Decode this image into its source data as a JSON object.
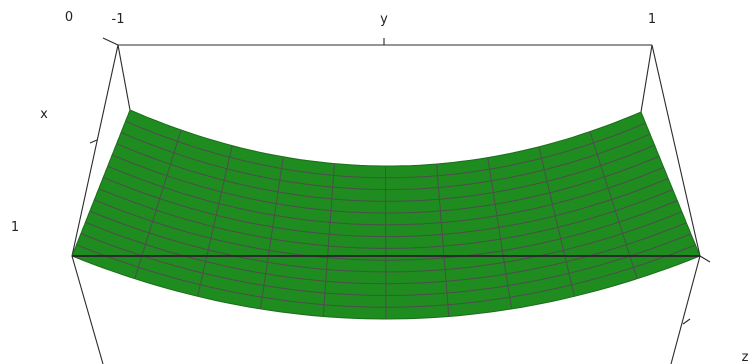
{
  "chart_data": {
    "type": "surface",
    "axes": {
      "x": {
        "label": "x",
        "tick_labels": [
          "0",
          "1"
        ]
      },
      "y": {
        "label": "y",
        "tick_labels": [
          "-1",
          "1"
        ]
      },
      "z": {
        "label": "z",
        "tick_labels": []
      }
    },
    "surface": {
      "color": "#1f8c1f",
      "grid_color": "#4d4d4d",
      "y_range": [
        -1,
        1
      ],
      "x_range": [
        0,
        1
      ],
      "y_grid_lines": 11,
      "x_grid_lines": 14
    },
    "box_color": "#2b2b2b"
  }
}
